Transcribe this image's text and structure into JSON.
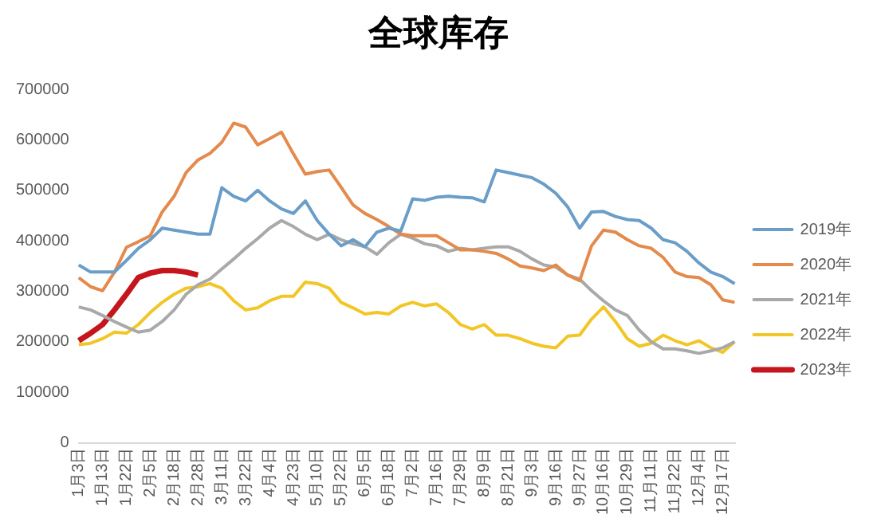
{
  "chart_data": {
    "type": "line",
    "title": "全球库存",
    "categories": [
      "1月3日",
      null,
      "1月13日",
      null,
      "1月22日",
      null,
      "2月5日",
      null,
      "2月18日",
      null,
      "2月28日",
      null,
      "3月11日",
      null,
      "3月22日",
      null,
      "4月4日",
      null,
      "4月23日",
      null,
      "5月10日",
      null,
      "5月22日",
      null,
      "6月5日",
      null,
      "6月18日",
      null,
      "7月2日",
      null,
      "7月16日",
      null,
      "7月29日",
      null,
      "8月9日",
      null,
      "8月21日",
      null,
      "9月3日",
      null,
      "9月16日",
      null,
      "9月27日",
      null,
      "10月16日",
      null,
      "10月29日",
      null,
      "11月11日",
      null,
      "11月22日",
      null,
      "12月4日",
      null,
      "12月17日",
      null
    ],
    "series": [
      {
        "name": "2019年",
        "color": "#6a9ec8",
        "values": [
          352000,
          338000,
          338000,
          338000,
          361000,
          385000,
          402000,
          425000,
          421000,
          417000,
          413000,
          413000,
          505000,
          488000,
          479000,
          500000,
          479000,
          463000,
          454000,
          479000,
          440000,
          413000,
          390000,
          402000,
          388000,
          417000,
          425000,
          419000,
          483000,
          480000,
          486000,
          488000,
          486000,
          485000,
          477000,
          540000,
          535000,
          530000,
          525000,
          512000,
          494000,
          467000,
          425000,
          457000,
          458000,
          448000,
          442000,
          440000,
          425000,
          402000,
          396000,
          379000,
          356000,
          338000,
          329000,
          315000
        ]
      },
      {
        "name": "2020年",
        "color": "#e38a4c",
        "values": [
          327000,
          309000,
          301000,
          338000,
          387000,
          398000,
          410000,
          457000,
          488000,
          535000,
          560000,
          573000,
          595000,
          633000,
          625000,
          590000,
          602000,
          615000,
          572000,
          532000,
          537000,
          540000,
          506000,
          471000,
          454000,
          442000,
          428000,
          413000,
          410000,
          410000,
          410000,
          396000,
          382000,
          382000,
          379000,
          375000,
          364000,
          350000,
          346000,
          341000,
          352000,
          332000,
          321000,
          390000,
          421000,
          417000,
          402000,
          390000,
          385000,
          367000,
          338000,
          329000,
          327000,
          313000,
          283000,
          278000
        ]
      },
      {
        "name": "2021年",
        "color": "#a9a9a9",
        "values": [
          269000,
          263000,
          252000,
          240000,
          229000,
          219000,
          223000,
          240000,
          263000,
          294000,
          313000,
          324000,
          344000,
          364000,
          385000,
          404000,
          425000,
          440000,
          428000,
          413000,
          402000,
          413000,
          402000,
          394000,
          388000,
          373000,
          396000,
          413000,
          405000,
          394000,
          390000,
          379000,
          385000,
          382000,
          385000,
          388000,
          388000,
          379000,
          364000,
          352000,
          348000,
          332000,
          324000,
          301000,
          281000,
          263000,
          252000,
          223000,
          200000,
          186000,
          186000,
          182000,
          177000,
          182000,
          188000,
          200000
        ]
      },
      {
        "name": "2022年",
        "color": "#f2c626",
        "values": [
          194000,
          197000,
          206000,
          219000,
          217000,
          234000,
          258000,
          278000,
          294000,
          306000,
          309000,
          315000,
          306000,
          281000,
          263000,
          267000,
          281000,
          290000,
          290000,
          318000,
          315000,
          306000,
          278000,
          267000,
          255000,
          258000,
          255000,
          271000,
          278000,
          271000,
          275000,
          258000,
          234000,
          225000,
          234000,
          213000,
          213000,
          206000,
          197000,
          191000,
          188000,
          211000,
          213000,
          245000,
          269000,
          240000,
          206000,
          191000,
          197000,
          213000,
          202000,
          194000,
          202000,
          188000,
          179000,
          200000
        ]
      },
      {
        "name": "2023年",
        "color": "#c4161c",
        "values": [
          202000,
          217000,
          234000,
          263000,
          294000,
          327000,
          336000,
          341000,
          341000,
          338000,
          332000,
          null,
          null,
          null,
          null,
          null,
          null,
          null,
          null,
          null,
          null,
          null,
          null,
          null,
          null,
          null,
          null,
          null,
          null,
          null,
          null,
          null,
          null,
          null,
          null,
          null,
          null,
          null,
          null,
          null,
          null,
          null,
          null,
          null,
          null,
          null,
          null,
          null,
          null,
          null,
          null,
          null,
          null,
          null,
          null,
          null
        ]
      }
    ],
    "ylim": [
      0,
      700000
    ],
    "yticks": [
      0,
      100000,
      200000,
      300000,
      400000,
      500000,
      600000,
      700000
    ],
    "grid": false,
    "legend": "right",
    "marker": "none",
    "line_style": "solid"
  }
}
